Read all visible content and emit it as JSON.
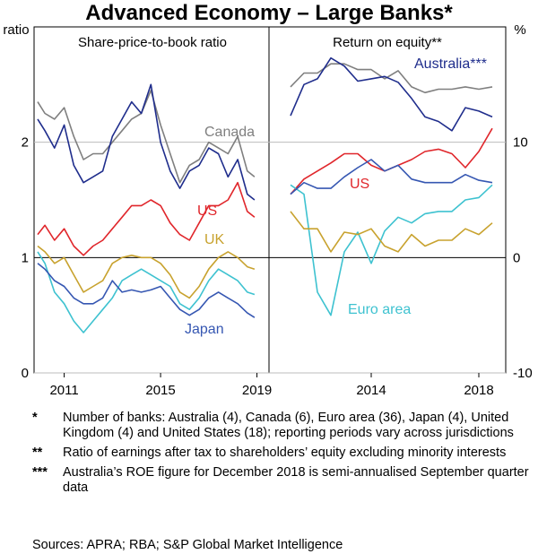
{
  "title": "Advanced Economy – Large Banks*",
  "chart_data": [
    {
      "type": "line",
      "title": "Share-price-to-book ratio",
      "ylabel": "ratio",
      "ylim": [
        0,
        3
      ],
      "yticks": [
        0,
        1,
        2
      ],
      "xlim": [
        2009.75,
        2019.5
      ],
      "xticks": [
        2011,
        2015,
        2019
      ],
      "series": [
        {
          "name": "Canada",
          "color": "#7f7f7f",
          "x": [
            2009.9,
            2010.2,
            2010.6,
            2011.0,
            2011.4,
            2011.8,
            2012.2,
            2012.6,
            2013.0,
            2013.4,
            2013.8,
            2014.2,
            2014.6,
            2015.0,
            2015.4,
            2015.8,
            2016.2,
            2016.6,
            2017.0,
            2017.4,
            2017.8,
            2018.2,
            2018.6,
            2018.9
          ],
          "y": [
            2.35,
            2.25,
            2.2,
            2.3,
            2.05,
            1.85,
            1.9,
            1.9,
            2.0,
            2.1,
            2.2,
            2.25,
            2.45,
            2.15,
            1.9,
            1.65,
            1.8,
            1.85,
            2.0,
            1.95,
            1.9,
            2.05,
            1.75,
            1.7
          ]
        },
        {
          "name": "Australia",
          "color": "#1f2d8c",
          "x": [
            2009.9,
            2010.2,
            2010.6,
            2011.0,
            2011.4,
            2011.8,
            2012.2,
            2012.6,
            2013.0,
            2013.4,
            2013.8,
            2014.2,
            2014.6,
            2015.0,
            2015.4,
            2015.8,
            2016.2,
            2016.6,
            2017.0,
            2017.4,
            2017.8,
            2018.2,
            2018.6,
            2018.9
          ],
          "y": [
            2.2,
            2.1,
            1.95,
            2.15,
            1.8,
            1.65,
            1.7,
            1.75,
            2.05,
            2.2,
            2.35,
            2.25,
            2.5,
            2.0,
            1.75,
            1.6,
            1.75,
            1.8,
            1.95,
            1.9,
            1.7,
            1.85,
            1.55,
            1.5
          ]
        },
        {
          "name": "US",
          "color": "#e0262b",
          "x": [
            2009.9,
            2010.2,
            2010.6,
            2011.0,
            2011.4,
            2011.8,
            2012.2,
            2012.6,
            2013.0,
            2013.4,
            2013.8,
            2014.2,
            2014.6,
            2015.0,
            2015.4,
            2015.8,
            2016.2,
            2016.6,
            2017.0,
            2017.4,
            2017.8,
            2018.2,
            2018.6,
            2018.9
          ],
          "y": [
            1.2,
            1.28,
            1.15,
            1.25,
            1.1,
            1.02,
            1.1,
            1.15,
            1.25,
            1.35,
            1.45,
            1.45,
            1.5,
            1.45,
            1.3,
            1.2,
            1.15,
            1.3,
            1.45,
            1.45,
            1.5,
            1.65,
            1.4,
            1.35
          ]
        },
        {
          "name": "UK",
          "color": "#c8a22e",
          "x": [
            2009.9,
            2010.2,
            2010.6,
            2011.0,
            2011.4,
            2011.8,
            2012.2,
            2012.6,
            2013.0,
            2013.4,
            2013.8,
            2014.2,
            2014.6,
            2015.0,
            2015.4,
            2015.8,
            2016.2,
            2016.6,
            2017.0,
            2017.4,
            2017.8,
            2018.2,
            2018.6,
            2018.9
          ],
          "y": [
            1.1,
            1.05,
            0.95,
            1.0,
            0.85,
            0.7,
            0.75,
            0.8,
            0.95,
            1.0,
            1.02,
            1.0,
            1.0,
            0.95,
            0.85,
            0.7,
            0.65,
            0.75,
            0.9,
            1.0,
            1.05,
            1.0,
            0.92,
            0.9
          ]
        },
        {
          "name": "Euro area",
          "color": "#3ec2d0",
          "x": [
            2009.9,
            2010.2,
            2010.6,
            2011.0,
            2011.4,
            2011.8,
            2012.2,
            2012.6,
            2013.0,
            2013.4,
            2013.8,
            2014.2,
            2014.6,
            2015.0,
            2015.4,
            2015.8,
            2016.2,
            2016.6,
            2017.0,
            2017.4,
            2017.8,
            2018.2,
            2018.6,
            2018.9
          ],
          "y": [
            1.05,
            0.95,
            0.7,
            0.6,
            0.45,
            0.35,
            0.45,
            0.55,
            0.65,
            0.8,
            0.85,
            0.9,
            0.85,
            0.8,
            0.75,
            0.6,
            0.55,
            0.65,
            0.8,
            0.9,
            0.85,
            0.8,
            0.7,
            0.68
          ]
        },
        {
          "name": "Japan",
          "color": "#3657b2",
          "x": [
            2009.9,
            2010.2,
            2010.6,
            2011.0,
            2011.4,
            2011.8,
            2012.2,
            2012.6,
            2013.0,
            2013.4,
            2013.8,
            2014.2,
            2014.6,
            2015.0,
            2015.4,
            2015.8,
            2016.2,
            2016.6,
            2017.0,
            2017.4,
            2017.8,
            2018.2,
            2018.6,
            2018.9
          ],
          "y": [
            0.95,
            0.9,
            0.8,
            0.75,
            0.65,
            0.6,
            0.6,
            0.65,
            0.8,
            0.7,
            0.72,
            0.7,
            0.72,
            0.75,
            0.65,
            0.55,
            0.5,
            0.55,
            0.65,
            0.7,
            0.65,
            0.6,
            0.52,
            0.48
          ]
        }
      ]
    },
    {
      "type": "line",
      "title": "Return on equity**",
      "ylabel": "%",
      "ylim": [
        -10,
        20
      ],
      "yticks": [
        -10,
        0,
        10
      ],
      "xlim": [
        2010.2,
        2019.0
      ],
      "xticks": [
        2014,
        2018
      ],
      "series": [
        {
          "name": "Canada",
          "color": "#7f7f7f",
          "x": [
            2011,
            2011.5,
            2012,
            2012.5,
            2013,
            2013.5,
            2014,
            2014.5,
            2015,
            2015.5,
            2016,
            2016.5,
            2017,
            2017.5,
            2018,
            2018.5
          ],
          "y": [
            14.8,
            16.0,
            16.0,
            16.8,
            16.8,
            16.3,
            16.3,
            15.5,
            16.2,
            14.8,
            14.3,
            14.6,
            14.6,
            14.8,
            14.6,
            14.8
          ]
        },
        {
          "name": "Australia***",
          "color": "#1f2d8c",
          "x": [
            2011,
            2011.5,
            2012,
            2012.5,
            2013,
            2013.5,
            2014,
            2014.5,
            2015,
            2015.5,
            2016,
            2016.5,
            2017,
            2017.5,
            2018,
            2018.5
          ],
          "y": [
            12.3,
            15.0,
            15.5,
            17.3,
            16.6,
            15.3,
            15.5,
            15.7,
            15.2,
            13.8,
            12.2,
            11.8,
            11.0,
            13.0,
            12.7,
            12.2
          ]
        },
        {
          "name": "US",
          "color": "#e0262b",
          "x": [
            2011,
            2011.5,
            2012,
            2012.5,
            2013,
            2013.5,
            2014,
            2014.5,
            2015,
            2015.5,
            2016,
            2016.5,
            2017,
            2017.5,
            2018,
            2018.5
          ],
          "y": [
            5.5,
            6.8,
            7.5,
            8.2,
            9.0,
            9.0,
            8.0,
            7.5,
            8.0,
            8.5,
            9.2,
            9.4,
            9.0,
            7.8,
            9.2,
            11.2
          ]
        },
        {
          "name": "Euro area",
          "color": "#3ec2d0",
          "x": [
            2011,
            2011.5,
            2012,
            2012.5,
            2013,
            2013.5,
            2014,
            2014.5,
            2015,
            2015.5,
            2016,
            2016.5,
            2017,
            2017.5,
            2018,
            2018.5
          ],
          "y": [
            6.3,
            5.5,
            -3.0,
            -5.0,
            0.5,
            2.2,
            -0.5,
            2.3,
            3.5,
            3.0,
            3.8,
            4.0,
            4.0,
            5.0,
            5.2,
            6.3
          ]
        },
        {
          "name": "UK",
          "color": "#c8a22e",
          "x": [
            2011,
            2011.5,
            2012,
            2012.5,
            2013,
            2013.5,
            2014,
            2014.5,
            2015,
            2015.5,
            2016,
            2016.5,
            2017,
            2017.5,
            2018,
            2018.5
          ],
          "y": [
            4.0,
            2.5,
            2.5,
            0.5,
            2.2,
            2.0,
            2.5,
            1.0,
            0.5,
            2.0,
            1.0,
            1.5,
            1.5,
            2.5,
            2.0,
            3.0
          ]
        },
        {
          "name": "Japan",
          "color": "#3657b2",
          "x": [
            2011,
            2011.5,
            2012,
            2012.5,
            2013,
            2013.5,
            2014,
            2014.5,
            2015,
            2015.5,
            2016,
            2016.5,
            2017,
            2017.5,
            2018,
            2018.5
          ],
          "y": [
            5.5,
            6.5,
            6.0,
            6.0,
            7.0,
            7.8,
            8.5,
            7.5,
            8.0,
            6.8,
            6.5,
            6.5,
            6.5,
            7.2,
            6.7,
            6.5
          ]
        }
      ]
    }
  ],
  "labels": {
    "left_panel": {
      "Canada": "Canada",
      "US": "US",
      "UK": "UK",
      "Japan": "Japan"
    },
    "right_panel": {
      "Australia": "Australia***",
      "US": "US",
      "Euro area": "Euro area"
    }
  },
  "notes": [
    {
      "mark": "*",
      "text": "Number of banks: Australia (4), Canada (6), Euro area (36), Japan (4), United Kingdom (4) and United States (18); reporting periods vary across jurisdictions"
    },
    {
      "mark": "**",
      "text": "Ratio of earnings after tax to shareholders’ equity excluding minority interests"
    },
    {
      "mark": "***",
      "text": "Australia’s ROE figure for December 2018 is semi-annualised September quarter data"
    }
  ],
  "sources": "Sources: APRA; RBA; S&P Global Market Intelligence"
}
